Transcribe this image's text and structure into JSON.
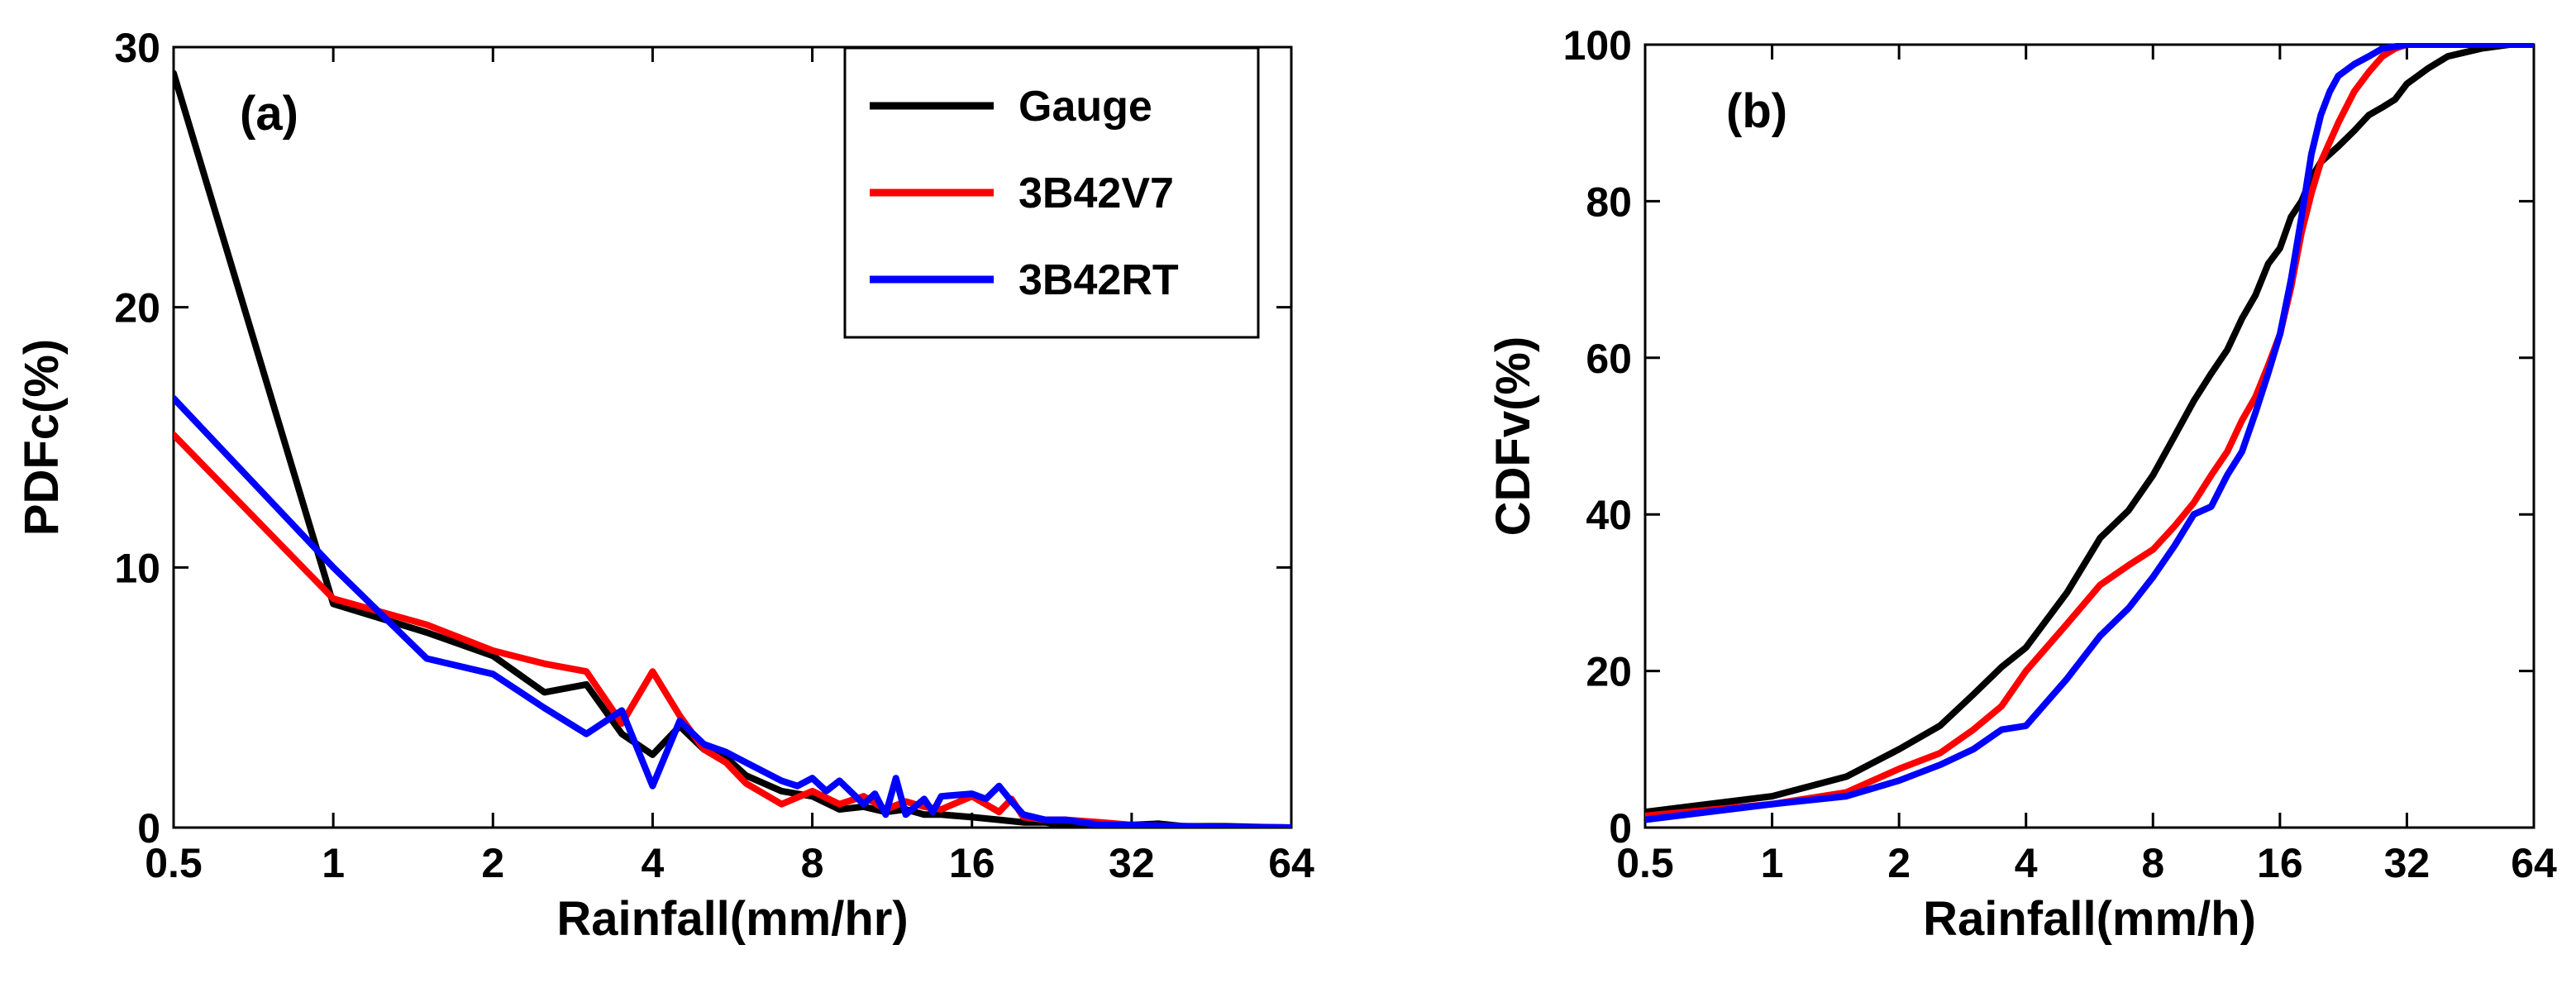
{
  "colors": {
    "gauge": "#000000",
    "v7": "#ff0000",
    "rt": "#0000ff",
    "axis": "#000000",
    "background": "#ffffff"
  },
  "legend": {
    "position": "top-right",
    "entries": [
      "Gauge",
      "3B42V7",
      "3B42RT"
    ]
  },
  "chart_data": [
    {
      "type": "line",
      "panel_label": "(a)",
      "xlabel": "Rainfall(mm/hr)",
      "ylabel": "PDFc(%)",
      "xscale": "log2",
      "xlim": [
        0.5,
        64
      ],
      "ylim": [
        0,
        30
      ],
      "xticks": [
        0.5,
        1,
        2,
        4,
        8,
        16,
        32,
        64
      ],
      "xticklabels": [
        "0.5",
        "1",
        "2",
        "4",
        "8",
        "16",
        "32",
        "64"
      ],
      "yticks": [
        0,
        10,
        20,
        30
      ],
      "yticklabels": [
        "0",
        "10",
        "20",
        "30"
      ],
      "series": [
        {
          "name": "Gauge",
          "color": "#000000",
          "x": [
            0.5,
            1,
            1.5,
            2,
            2.5,
            3,
            3.5,
            4,
            4.5,
            5,
            5.5,
            6,
            7,
            8,
            9,
            10,
            11,
            12,
            13,
            14,
            16,
            18,
            20,
            22,
            24,
            28,
            32,
            36,
            40,
            48,
            56,
            64
          ],
          "y": [
            29,
            8.6,
            7.5,
            6.6,
            5.2,
            5.5,
            3.6,
            2.8,
            3.9,
            3.0,
            2.7,
            2.0,
            1.4,
            1.2,
            0.7,
            0.8,
            0.6,
            0.7,
            0.5,
            0.5,
            0.4,
            0.3,
            0.2,
            0.2,
            0.1,
            0.1,
            0.1,
            0.15,
            0.05,
            0.05,
            0.02,
            0
          ]
        },
        {
          "name": "3B42V7",
          "color": "#ff0000",
          "x": [
            0.5,
            1,
            1.5,
            2,
            2.5,
            3,
            3.5,
            4,
            4.5,
            5,
            5.5,
            6,
            7,
            8,
            9,
            10,
            11,
            12,
            13,
            14,
            16,
            18,
            19,
            20,
            22,
            24,
            28,
            32,
            40,
            48,
            56,
            64
          ],
          "y": [
            15.1,
            8.8,
            7.8,
            6.8,
            6.3,
            6.0,
            4.0,
            6.0,
            4.3,
            3.0,
            2.5,
            1.7,
            0.9,
            1.4,
            0.9,
            1.2,
            0.7,
            1.0,
            0.8,
            0.7,
            1.2,
            0.6,
            1.1,
            0.4,
            0.3,
            0.3,
            0.2,
            0.1,
            0.05,
            0.02,
            0.01,
            0
          ]
        },
        {
          "name": "3B42RT",
          "color": "#0000ff",
          "x": [
            0.5,
            1,
            1.5,
            2,
            2.5,
            3,
            3.5,
            4,
            4.5,
            5,
            5.5,
            6,
            7,
            7.5,
            8,
            8.5,
            9,
            10,
            10.5,
            11,
            11.5,
            12,
            13,
            13.5,
            14,
            16,
            17,
            18,
            19,
            20,
            22,
            24,
            28,
            32,
            40,
            48,
            56,
            64
          ],
          "y": [
            16.5,
            10.0,
            6.5,
            5.9,
            4.6,
            3.6,
            4.5,
            1.6,
            4.1,
            3.2,
            2.9,
            2.5,
            1.8,
            1.6,
            1.9,
            1.4,
            1.8,
            0.9,
            1.3,
            0.5,
            1.9,
            0.5,
            1.1,
            0.6,
            1.2,
            1.3,
            1.1,
            1.6,
            1.0,
            0.5,
            0.3,
            0.3,
            0.1,
            0.1,
            0.05,
            0.02,
            0.01,
            0
          ]
        }
      ]
    },
    {
      "type": "line",
      "panel_label": "(b)",
      "xlabel": "Rainfall(mm/h)",
      "ylabel": "CDFv(%)",
      "xscale": "log2",
      "xlim": [
        0.5,
        64
      ],
      "ylim": [
        0,
        100
      ],
      "xticks": [
        0.5,
        1,
        2,
        4,
        8,
        16,
        32,
        64
      ],
      "xticklabels": [
        "0.5",
        "1",
        "2",
        "4",
        "8",
        "16",
        "32",
        "64"
      ],
      "yticks": [
        0,
        20,
        40,
        60,
        80,
        100
      ],
      "yticklabels": [
        "0",
        "20",
        "40",
        "60",
        "80",
        "100"
      ],
      "series": [
        {
          "name": "Gauge",
          "color": "#000000",
          "x": [
            0.5,
            1,
            1.5,
            2,
            2.5,
            3,
            3.5,
            4,
            5,
            6,
            7,
            8,
            9,
            10,
            11,
            12,
            13,
            14,
            15,
            16,
            17,
            18,
            19,
            20,
            22,
            24,
            26,
            28,
            30,
            32,
            36,
            40,
            48,
            56,
            64
          ],
          "y": [
            2,
            4,
            6.5,
            10,
            13,
            17,
            20.5,
            23,
            30,
            37,
            40.5,
            45,
            50,
            54.5,
            58,
            61,
            65,
            68,
            72,
            74,
            78,
            80,
            83,
            85,
            87,
            89,
            91,
            92,
            93,
            95,
            97,
            98.5,
            99.5,
            100,
            100
          ]
        },
        {
          "name": "3B42V7",
          "color": "#ff0000",
          "x": [
            0.5,
            1,
            1.5,
            2,
            2.5,
            3,
            3.5,
            4,
            5,
            6,
            7,
            8,
            9,
            10,
            11,
            12,
            13,
            14,
            15,
            16,
            17,
            18,
            19,
            20,
            22,
            24,
            26,
            28,
            30,
            32,
            40,
            48,
            56,
            64
          ],
          "y": [
            1.5,
            3,
            4.5,
            7.5,
            9.5,
            12.5,
            15.5,
            20,
            26,
            31,
            33.5,
            35.5,
            38.5,
            41.5,
            45,
            48,
            52,
            55,
            59,
            63,
            69,
            76,
            81,
            85,
            90,
            94,
            96.5,
            98.5,
            99.5,
            100,
            100,
            100,
            100,
            100
          ]
        },
        {
          "name": "3B42RT",
          "color": "#0000ff",
          "x": [
            0.5,
            1,
            1.5,
            2,
            2.5,
            3,
            3.5,
            4,
            5,
            6,
            7,
            8,
            9,
            10,
            11,
            12,
            13,
            14,
            15,
            16,
            17,
            18,
            19,
            20,
            21,
            22,
            24,
            26,
            28,
            32,
            40,
            48,
            56,
            64
          ],
          "y": [
            1,
            3,
            4,
            6,
            8,
            10,
            12.5,
            13,
            19,
            24.5,
            28,
            32,
            36,
            40,
            41,
            45,
            48,
            53,
            58,
            63,
            70,
            78,
            86,
            91,
            94,
            96,
            97.5,
            98.5,
            99.5,
            100,
            100,
            100,
            100,
            100
          ]
        }
      ]
    }
  ]
}
